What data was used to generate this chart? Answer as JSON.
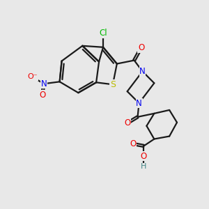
{
  "bg": "#e8e8e8",
  "bc": "#1a1a1a",
  "colors": {
    "Cl": "#00bb00",
    "N": "#0000ee",
    "O": "#ee0000",
    "S": "#bbbb00",
    "H": "#448888",
    "C": "#1a1a1a"
  }
}
